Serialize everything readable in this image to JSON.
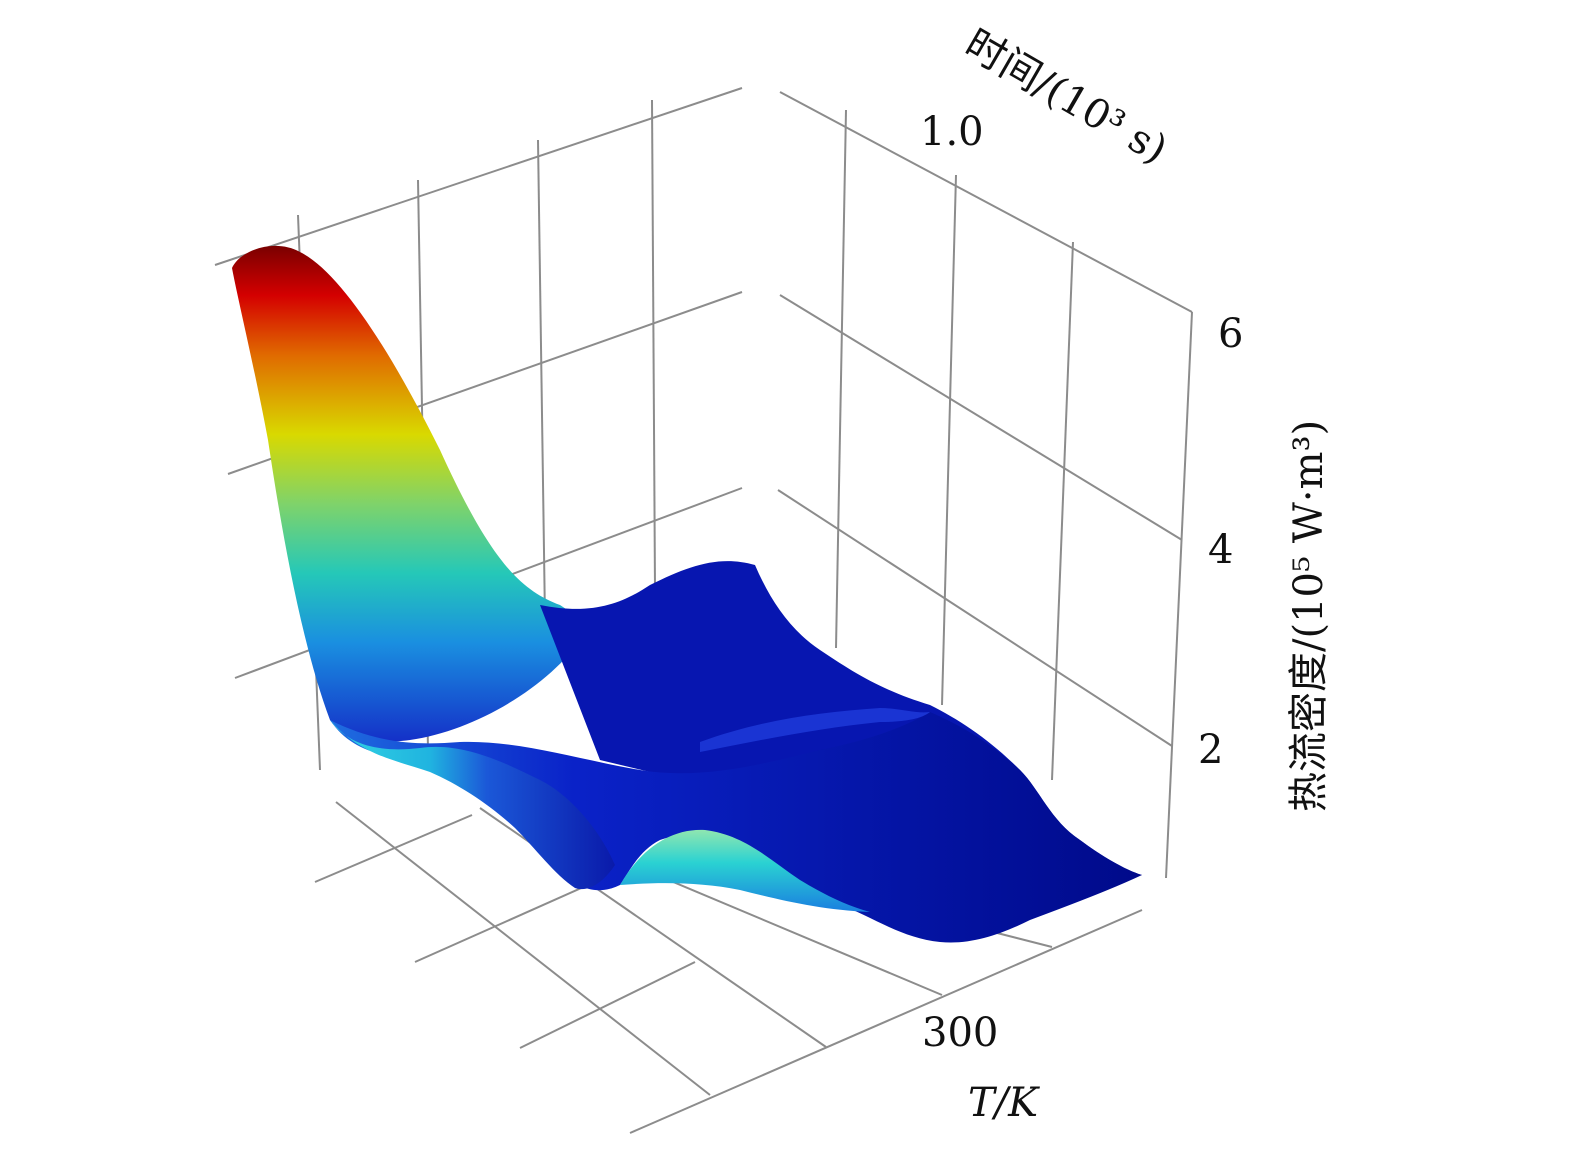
{
  "chart_data": {
    "type": "surface",
    "colormap": "jet",
    "grid": true,
    "axes": {
      "time": {
        "label": "时间/(10³ s)",
        "ticks": [
          "1.0"
        ]
      },
      "temperature": {
        "label": "T/K",
        "ticks": [
          "300"
        ]
      },
      "z": {
        "label": "热流密度/(10⁵ W·m³)",
        "ticks": [
          "2",
          "4",
          "6"
        ],
        "range": [
          0.5,
          6.8
        ]
      }
    },
    "surface_profiles": [
      {
        "edge": "left (far temperature end)",
        "z": [
          6.6,
          6.7,
          6.2,
          4.8,
          3.2,
          2.1,
          1.6,
          1.5,
          1.4
        ]
      },
      {
        "edge": "front (near time end)",
        "z": [
          2.0,
          2.1,
          1.4,
          0.9,
          1.0,
          2.1,
          1.4,
          0.8,
          0.6,
          0.9,
          1.1,
          0.9
        ]
      },
      {
        "edge": "right (near temperature end)",
        "z": [
          1.0,
          1.3,
          1.2,
          0.8,
          0.7,
          1.0
        ]
      }
    ]
  }
}
